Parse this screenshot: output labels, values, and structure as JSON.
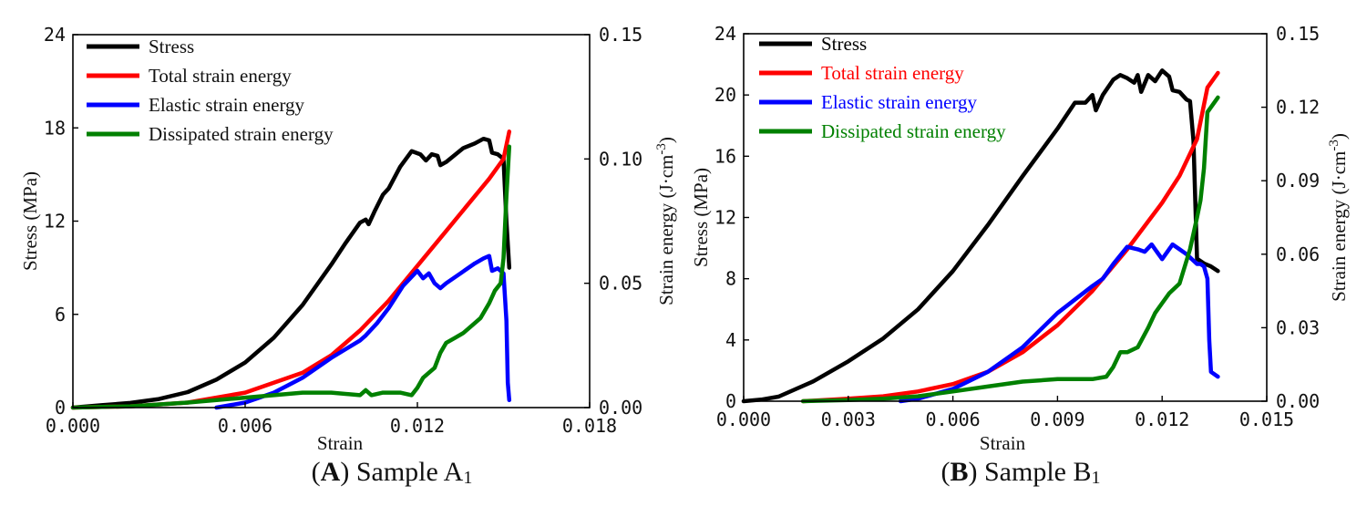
{
  "chart_data": [
    {
      "type": "line",
      "caption": {
        "letter": "A",
        "text": "Sample A",
        "subscript": "1"
      },
      "xlabel": "Strain",
      "ylabel": "Stress (MPa)",
      "y2label": "Strain energy (J·cm",
      "y2label_sup": "-3",
      "y2label_close": ")",
      "xlim": [
        0,
        0.018
      ],
      "ylim": [
        0,
        24
      ],
      "y2lim": [
        0,
        0.15
      ],
      "xticks": [
        0,
        0.006,
        0.012,
        0.018
      ],
      "xtick_labels": [
        "0.000",
        "0.006",
        "0.012",
        "0.018"
      ],
      "yticks": [
        0,
        6,
        12,
        18,
        24
      ],
      "ytick_labels": [
        "0",
        "6",
        "12",
        "18",
        "24"
      ],
      "y2ticks": [
        0,
        0.05,
        0.1,
        0.15
      ],
      "y2tick_labels": [
        "0.00",
        "0.05",
        "0.10",
        "0.15"
      ],
      "legend_position": "top-left",
      "legend_text_colored": false,
      "series": [
        {
          "name": "Stress",
          "axis": "left",
          "color": "#000000",
          "x": [
            0,
            0.001,
            0.002,
            0.003,
            0.004,
            0.005,
            0.006,
            0.007,
            0.008,
            0.009,
            0.0095,
            0.01,
            0.0102,
            0.0103,
            0.0105,
            0.0108,
            0.011,
            0.0114,
            0.0118,
            0.0121,
            0.0123,
            0.0125,
            0.0127,
            0.0128,
            0.013,
            0.0132,
            0.0136,
            0.014,
            0.0143,
            0.0145,
            0.0146,
            0.0148,
            0.015,
            0.0151,
            0.0152
          ],
          "y": [
            0,
            0.15,
            0.3,
            0.55,
            1.0,
            1.8,
            2.9,
            4.5,
            6.6,
            9.2,
            10.6,
            11.9,
            12.1,
            11.8,
            12.6,
            13.7,
            14.1,
            15.5,
            16.5,
            16.3,
            15.9,
            16.3,
            16.2,
            15.6,
            15.8,
            16.1,
            16.7,
            17.0,
            17.3,
            17.2,
            16.4,
            16.3,
            16.0,
            12.0,
            9.0
          ]
        },
        {
          "name": "Total strain energy",
          "axis": "right",
          "color": "#ff0000",
          "x": [
            0,
            0.002,
            0.004,
            0.006,
            0.008,
            0.009,
            0.01,
            0.011,
            0.012,
            0.013,
            0.014,
            0.0145,
            0.015,
            0.0152
          ],
          "y": [
            0,
            0.0005,
            0.002,
            0.006,
            0.014,
            0.021,
            0.031,
            0.043,
            0.057,
            0.071,
            0.085,
            0.092,
            0.1,
            0.111
          ]
        },
        {
          "name": "Elastic strain energy",
          "axis": "right",
          "color": "#0000ff",
          "x": [
            0.005,
            0.006,
            0.007,
            0.008,
            0.009,
            0.01,
            0.0102,
            0.0106,
            0.011,
            0.0115,
            0.012,
            0.0122,
            0.0124,
            0.0126,
            0.0128,
            0.013,
            0.0135,
            0.014,
            0.0143,
            0.0145,
            0.0146,
            0.0148,
            0.015,
            0.0151,
            0.01515,
            0.0152
          ],
          "y": [
            0,
            0.002,
            0.006,
            0.012,
            0.02,
            0.027,
            0.029,
            0.034,
            0.04,
            0.049,
            0.055,
            0.052,
            0.054,
            0.05,
            0.048,
            0.05,
            0.054,
            0.058,
            0.06,
            0.061,
            0.055,
            0.056,
            0.054,
            0.035,
            0.01,
            0.003
          ]
        },
        {
          "name": "Dissipated strain energy",
          "axis": "right",
          "color": "#008000",
          "x": [
            0,
            0.002,
            0.004,
            0.006,
            0.008,
            0.009,
            0.01,
            0.0102,
            0.0104,
            0.0108,
            0.011,
            0.0114,
            0.0118,
            0.012,
            0.0122,
            0.0124,
            0.0126,
            0.0128,
            0.013,
            0.0133,
            0.0136,
            0.014,
            0.0142,
            0.0145,
            0.0147,
            0.0149,
            0.015,
            0.0151,
            0.0152
          ],
          "y": [
            0,
            0.0005,
            0.002,
            0.004,
            0.006,
            0.006,
            0.005,
            0.007,
            0.005,
            0.006,
            0.006,
            0.006,
            0.005,
            0.008,
            0.012,
            0.014,
            0.016,
            0.022,
            0.026,
            0.028,
            0.03,
            0.034,
            0.036,
            0.042,
            0.047,
            0.05,
            0.06,
            0.085,
            0.105
          ]
        }
      ]
    },
    {
      "type": "line",
      "caption": {
        "letter": "B",
        "text": "Sample B",
        "subscript": "1"
      },
      "xlabel": "Strain",
      "ylabel": "Stress (MPa)",
      "y2label": "Strain energy (J·cm",
      "y2label_sup": "-3",
      "y2label_close": ")",
      "xlim": [
        0,
        0.015
      ],
      "ylim": [
        0,
        24
      ],
      "y2lim": [
        0,
        0.15
      ],
      "xticks": [
        0,
        0.003,
        0.006,
        0.009,
        0.012,
        0.015
      ],
      "xtick_labels": [
        "0.000",
        "0.003",
        "0.006",
        "0.009",
        "0.012",
        "0.015"
      ],
      "yticks": [
        0,
        4,
        8,
        12,
        16,
        20,
        24
      ],
      "ytick_labels": [
        "0",
        "4",
        "8",
        "12",
        "16",
        "20",
        "24"
      ],
      "y2ticks": [
        0,
        0.03,
        0.06,
        0.09,
        0.12,
        0.15
      ],
      "y2tick_labels": [
        "0.00",
        "0.03",
        "0.06",
        "0.09",
        "0.12",
        "0.15"
      ],
      "legend_position": "top-left",
      "legend_text_colored": true,
      "series": [
        {
          "name": "Stress",
          "axis": "left",
          "color": "#000000",
          "x": [
            0,
            0.0005,
            0.001,
            0.002,
            0.003,
            0.004,
            0.005,
            0.006,
            0.007,
            0.008,
            0.009,
            0.0095,
            0.0098,
            0.01,
            0.0101,
            0.0103,
            0.0106,
            0.0108,
            0.011,
            0.0112,
            0.0113,
            0.0114,
            0.0116,
            0.0118,
            0.012,
            0.0122,
            0.0123,
            0.0125,
            0.0127,
            0.0128,
            0.0129,
            0.01295,
            0.013,
            0.0132,
            0.0134,
            0.0136
          ],
          "y": [
            0,
            0.1,
            0.3,
            1.3,
            2.6,
            4.1,
            6.0,
            8.5,
            11.5,
            14.7,
            17.8,
            19.5,
            19.5,
            20.0,
            19.0,
            20.0,
            21.0,
            21.3,
            21.1,
            20.8,
            21.3,
            20.2,
            21.3,
            20.9,
            21.6,
            21.2,
            20.3,
            20.2,
            19.7,
            19.6,
            17.0,
            13.0,
            9.3,
            9.0,
            8.8,
            8.5
          ]
        },
        {
          "name": "Total strain energy",
          "axis": "right",
          "color": "#ff0000",
          "x": [
            0.0017,
            0.003,
            0.004,
            0.005,
            0.006,
            0.007,
            0.008,
            0.009,
            0.01,
            0.011,
            0.012,
            0.0125,
            0.013,
            0.0133,
            0.0136
          ],
          "y": [
            0,
            0.001,
            0.002,
            0.004,
            0.007,
            0.012,
            0.02,
            0.031,
            0.045,
            0.062,
            0.081,
            0.092,
            0.107,
            0.128,
            0.134
          ]
        },
        {
          "name": "Elastic strain energy",
          "axis": "right",
          "color": "#0000ff",
          "x": [
            0.0045,
            0.005,
            0.006,
            0.007,
            0.008,
            0.009,
            0.01,
            0.0103,
            0.0106,
            0.011,
            0.0113,
            0.0115,
            0.0117,
            0.012,
            0.0123,
            0.0125,
            0.0127,
            0.013,
            0.0131,
            0.0132,
            0.0133,
            0.01335,
            0.0134,
            0.0136
          ],
          "y": [
            0,
            0.001,
            0.005,
            0.012,
            0.022,
            0.036,
            0.047,
            0.05,
            0.056,
            0.063,
            0.062,
            0.061,
            0.064,
            0.058,
            0.064,
            0.062,
            0.06,
            0.056,
            0.056,
            0.055,
            0.05,
            0.025,
            0.012,
            0.01
          ]
        },
        {
          "name": "Dissipated strain energy",
          "axis": "right",
          "color": "#008000",
          "x": [
            0.0017,
            0.003,
            0.004,
            0.005,
            0.006,
            0.007,
            0.008,
            0.009,
            0.01,
            0.0104,
            0.0106,
            0.0108,
            0.011,
            0.0113,
            0.0116,
            0.0118,
            0.012,
            0.0122,
            0.0125,
            0.0128,
            0.013,
            0.0131,
            0.0132,
            0.0133,
            0.0134,
            0.0136
          ],
          "y": [
            0,
            0.0005,
            0.001,
            0.002,
            0.004,
            0.006,
            0.008,
            0.009,
            0.009,
            0.01,
            0.014,
            0.02,
            0.02,
            0.022,
            0.03,
            0.036,
            0.04,
            0.044,
            0.048,
            0.062,
            0.075,
            0.082,
            0.095,
            0.118,
            0.12,
            0.124
          ]
        }
      ]
    }
  ]
}
